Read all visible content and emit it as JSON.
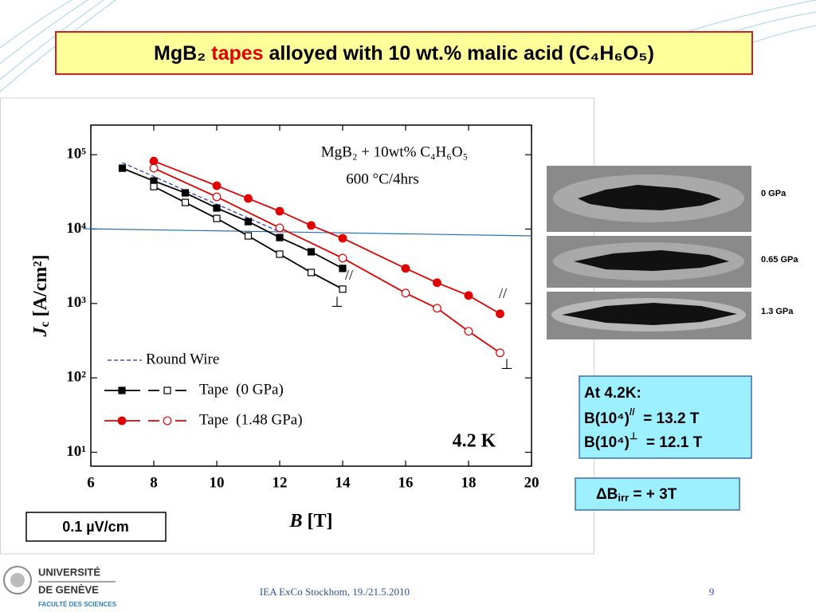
{
  "slide": {
    "title": {
      "pre": "MgB₂ ",
      "highlight": "tapes",
      "post": " alloyed with 10 wt.% malic acid (C₄H₆O₅)"
    },
    "criterion": "0.1 µV/cm",
    "image_labels": [
      "0 GPa",
      "0.65 GPa",
      "1.3 GPa"
    ],
    "info_box": {
      "heading": "At 4.2K:",
      "lines": [
        {
          "left": "B(10⁴)",
          "field": "//",
          "right": "  = 13.2 T"
        },
        {
          "left": "B(10⁴)",
          "field": "⊥",
          "right": "  = 12.1 T"
        }
      ]
    },
    "delta_box": {
      "symbol": "ΔB",
      "subscript": "irr",
      "right": " = + 3T"
    },
    "footer": "IEA ExCo Stockhom, 19./21.5.2010",
    "page": "9",
    "logo": [
      "UNIVERSITÉ",
      "DE GENÈVE",
      "FACULTÉ DES SCIENCES"
    ]
  },
  "chart_data": {
    "type": "line",
    "log_y": true,
    "xlim": [
      6,
      20
    ],
    "ylim": [
      6.5,
      250000
    ],
    "xticks": [
      6,
      8,
      10,
      12,
      14,
      16,
      18,
      20
    ],
    "yticks": [
      {
        "value": 10,
        "label": "10¹"
      },
      {
        "value": 100,
        "label": "10²"
      },
      {
        "value": 1000,
        "label": "10³"
      },
      {
        "value": 10000,
        "label": "10⁴"
      },
      {
        "value": 100000,
        "label": "10⁵"
      }
    ],
    "xlabel": {
      "symbol": "B",
      "unit": " [T]"
    },
    "ylabel": {
      "symbol": "J",
      "subscript": "c",
      "unit": " [A/cm²]"
    },
    "annotations": {
      "material": "MgB₂ + 10wt% C₄H₆O₅",
      "process": "600 °C/4hrs",
      "temperature": "4.2 K",
      "parallel_0": "//",
      "perp_0": "⊥",
      "parallel_148": "//",
      "perp_148": "⊥"
    },
    "series": [
      {
        "name": "Round Wire",
        "color": "#2233bb",
        "dashed": true,
        "x": [
          7,
          8,
          9,
          10,
          11,
          12
        ],
        "values": [
          78000,
          51000,
          33000,
          21600,
          14100,
          9200
        ]
      },
      {
        "name": "Tape  (0 GPa)",
        "color": "#000000",
        "marker": "square",
        "x": [
          7,
          8,
          9,
          10,
          11,
          12,
          13,
          14
        ],
        "values": [
          65800,
          44400,
          30700,
          19200,
          12600,
          7700,
          4950,
          2960
        ],
        "x_perp": [
          8,
          9,
          10,
          11,
          12,
          13,
          14
        ],
        "values_perp": [
          37300,
          22800,
          13900,
          8100,
          4600,
          2610,
          1560
        ]
      },
      {
        "name": "Tape  (1.48 GPa)",
        "color": "#e00000",
        "marker": "circle",
        "x": [
          8,
          10,
          11,
          12,
          13,
          14,
          16,
          17,
          18,
          19
        ],
        "values": [
          82000,
          38300,
          25800,
          17400,
          11200,
          7530,
          2960,
          1900,
          1280,
          727
        ],
        "x_perp": [
          8,
          10,
          12,
          14,
          16,
          17,
          18,
          19
        ],
        "values_perp": [
          65800,
          27100,
          10400,
          4070,
          1380,
          863,
          423,
          217
        ]
      }
    ]
  }
}
